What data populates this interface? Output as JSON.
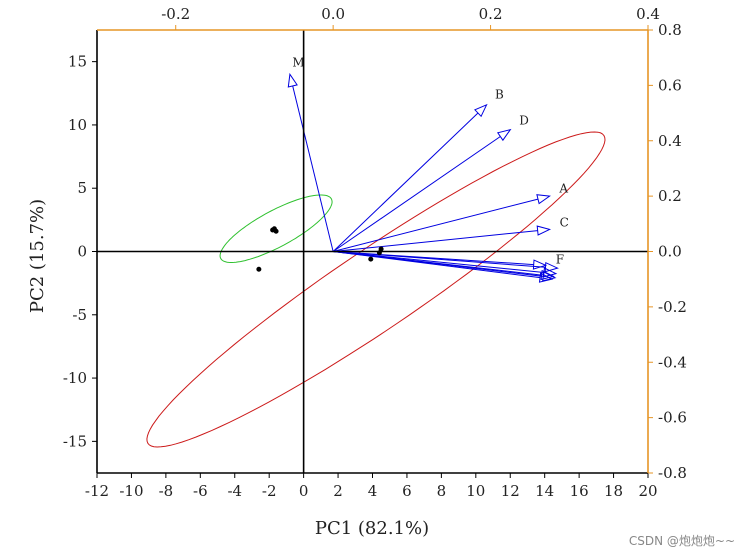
{
  "chart_data": {
    "type": "biplot",
    "xlabel": "PC1 (82.1%)",
    "ylabel": "PC2 (15.7%)",
    "xlim": [
      -12,
      20
    ],
    "ylim": [
      -17.5,
      17.5
    ],
    "x_ticks": [
      -12,
      -10,
      -8,
      -6,
      -4,
      -2,
      0,
      2,
      4,
      6,
      8,
      10,
      12,
      14,
      16,
      18,
      20
    ],
    "y_ticks": [
      -15,
      -10,
      -5,
      0,
      5,
      10,
      15
    ],
    "top_axis": {
      "range": [
        -0.3,
        0.4
      ],
      "ticks": [
        -0.2,
        0.0,
        0.2,
        0.4
      ],
      "labels": [
        "-0.2",
        "0.0",
        "0.2",
        "0.4"
      ],
      "color": "#e69526"
    },
    "right_axis": {
      "range": [
        -0.8,
        0.8
      ],
      "ticks": [
        0.8,
        0.6,
        0.4,
        0.2,
        0.0,
        -0.2,
        -0.4,
        -0.6,
        -0.8
      ],
      "labels": [
        "0.8",
        "0.6",
        "0.4",
        "0.2",
        "0.0",
        "-0.2",
        "-0.4",
        "-0.6",
        "-0.8"
      ],
      "color": "#e69526"
    },
    "loadings": [
      {
        "name": "M",
        "x": -0.055,
        "y": 0.64
      },
      {
        "name": "B",
        "x": 0.195,
        "y": 0.53
      },
      {
        "name": "D",
        "x": 0.225,
        "y": 0.44
      },
      {
        "name": "A",
        "x": 0.275,
        "y": 0.2
      },
      {
        "name": "C",
        "x": 0.275,
        "y": 0.08
      },
      {
        "name": "F",
        "x": 0.27,
        "y": -0.05
      },
      {
        "name": "",
        "x": 0.285,
        "y": -0.06
      },
      {
        "name": "",
        "x": 0.283,
        "y": -0.08
      },
      {
        "name": "",
        "x": 0.28,
        "y": -0.09
      },
      {
        "name": "",
        "x": 0.282,
        "y": -0.095
      },
      {
        "name": "",
        "x": 0.278,
        "y": -0.1
      }
    ],
    "scores": [
      {
        "x": -1.7,
        "y": 1.8
      },
      {
        "x": -1.8,
        "y": 1.7
      },
      {
        "x": -1.6,
        "y": 1.6
      },
      {
        "x": -2.6,
        "y": -1.4
      },
      {
        "x": 4.5,
        "y": 0.2
      },
      {
        "x": 4.4,
        "y": -0.1
      },
      {
        "x": 3.9,
        "y": -0.6
      }
    ],
    "ellipses": [
      {
        "group": "group-1",
        "color": "#2fc12f",
        "cx": -1.6,
        "cy": 1.8,
        "rx": 4.0,
        "ry": 1.3,
        "angle_deg": 38
      },
      {
        "group": "group-2",
        "color": "#cc1a1a",
        "cx": 4.2,
        "cy": -3.0,
        "rx": 18.0,
        "ry": 2.8,
        "angle_deg": 43
      }
    ],
    "arrow_color": "#0000e0"
  },
  "watermark": "CSDN @炮炮炮~~"
}
